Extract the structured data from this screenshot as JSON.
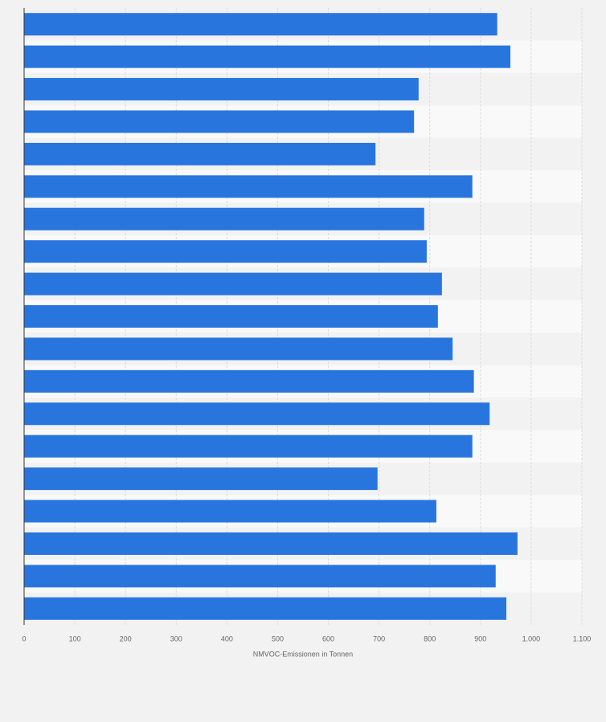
{
  "chart_data": {
    "type": "bar",
    "orientation": "horizontal",
    "categories": [
      null,
      null,
      null,
      null,
      null,
      null,
      null,
      null,
      null,
      null,
      null,
      null,
      null,
      null,
      null,
      null,
      null,
      null,
      null
    ],
    "values": [
      933,
      959,
      778,
      769,
      693,
      884,
      789,
      794,
      824,
      816,
      845,
      887,
      918,
      884,
      697,
      813,
      973,
      930,
      951
    ],
    "color": "#2876dd",
    "xlabel": "NMVOC-Emissionen in Tonnen",
    "xlim": [
      0,
      1100
    ],
    "xticks": [
      0,
      100,
      200,
      300,
      400,
      500,
      600,
      700,
      800,
      900,
      {
        "value": 1000,
        "label": "1.000"
      },
      {
        "value": 1100,
        "label": "1.100"
      }
    ],
    "grid": true
  }
}
